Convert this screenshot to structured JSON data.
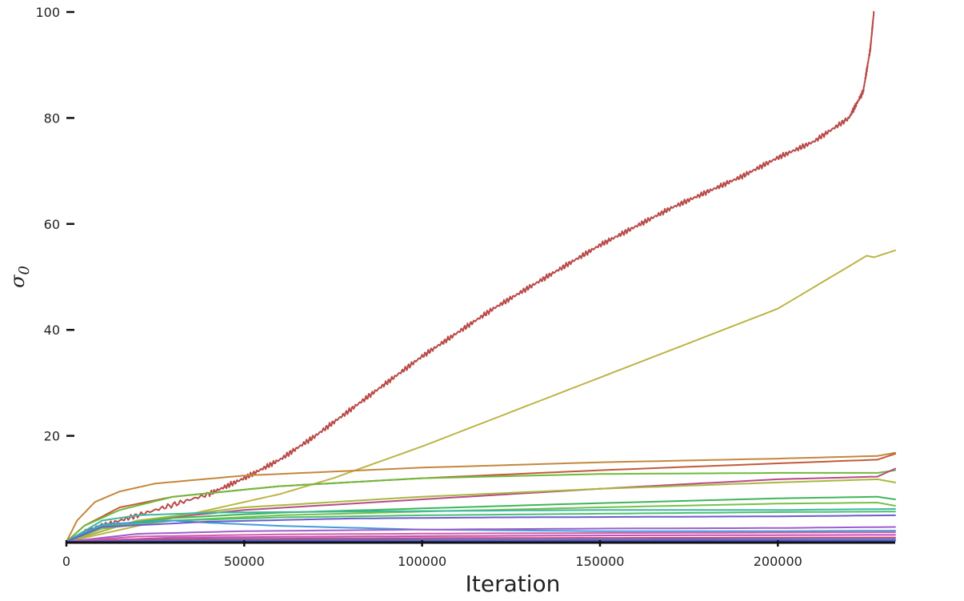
{
  "chart_data": {
    "type": "line",
    "title": "",
    "xlabel": "Iteration",
    "ylabel": "σ",
    "ylabel_subscript": "0",
    "xlim": [
      0,
      233000
    ],
    "ylim": [
      0,
      100
    ],
    "xticks": [
      0,
      50000,
      100000,
      150000,
      200000
    ],
    "xtick_labels": [
      "0",
      "50000",
      "100000",
      "150000",
      "200000"
    ],
    "yticks": [
      20,
      40,
      60,
      80,
      100
    ],
    "ytick_labels": [
      "20",
      "40",
      "60",
      "80",
      "100"
    ],
    "grid": false,
    "legend": "none",
    "series": [
      {
        "color": "#b94a48",
        "noise": 0.5,
        "x": [
          0,
          5000,
          20000,
          40000,
          50000,
          60000,
          70000,
          80000,
          90000,
          100000,
          110000,
          120000,
          130000,
          140000,
          150000,
          160000,
          170000,
          180000,
          190000,
          200000,
          210000,
          220000,
          224000,
          226000,
          227000
        ],
        "y": [
          0,
          2,
          5,
          9,
          12,
          15.5,
          20,
          25,
          30,
          35,
          39.5,
          44,
          48,
          52,
          56,
          59.5,
          63,
          66,
          69,
          72.5,
          75.5,
          80,
          85,
          93,
          100
        ]
      },
      {
        "color": "#bdb447",
        "x": [
          0,
          20000,
          40000,
          60000,
          75000,
          100000,
          150000,
          200000,
          225000,
          227000,
          233000
        ],
        "y": [
          0,
          3,
          6,
          9,
          12,
          18,
          31,
          44,
          54,
          53.7,
          55
        ]
      },
      {
        "color": "#c4873c",
        "x": [
          0,
          3000,
          8000,
          15000,
          25000,
          50000,
          100000,
          150000,
          200000,
          228000,
          233000
        ],
        "y": [
          0,
          4,
          7.5,
          9.5,
          11,
          12.5,
          14,
          15,
          15.7,
          16.2,
          16.8
        ]
      },
      {
        "color": "#c25a3a",
        "x": [
          0,
          5000,
          15000,
          30000,
          60000,
          100000,
          150000,
          200000,
          228000,
          233000
        ],
        "y": [
          0,
          3,
          6.5,
          8.5,
          10.5,
          12,
          13.5,
          14.8,
          15.5,
          16.6
        ]
      },
      {
        "color": "#6fba3c",
        "x": [
          0,
          5000,
          15000,
          30000,
          60000,
          100000,
          150000,
          200000,
          228000,
          233000
        ],
        "y": [
          0,
          3,
          6,
          8.5,
          10.5,
          12,
          12.8,
          13,
          13,
          13.5
        ]
      },
      {
        "color": "#b94a8a",
        "x": [
          0,
          20000,
          50000,
          100000,
          150000,
          200000,
          228000,
          233000
        ],
        "y": [
          0,
          4,
          6,
          8,
          10,
          11.8,
          12.3,
          13.8
        ]
      },
      {
        "color": "#a8b83c",
        "x": [
          0,
          20000,
          50000,
          100000,
          150000,
          200000,
          228000,
          233000
        ],
        "y": [
          0,
          4,
          6.5,
          8.5,
          10,
          11.2,
          11.8,
          11.2
        ]
      },
      {
        "color": "#3fb55a",
        "x": [
          0,
          10000,
          30000,
          60000,
          100000,
          150000,
          200000,
          228000,
          233000
        ],
        "y": [
          0,
          3,
          4.5,
          5.5,
          6.3,
          7.3,
          8.2,
          8.5,
          8.0
        ]
      },
      {
        "color": "#78c04a",
        "x": [
          0,
          10000,
          30000,
          60000,
          100000,
          150000,
          200000,
          228000,
          233000
        ],
        "y": [
          0,
          2.5,
          4,
          5,
          5.7,
          6.5,
          7.2,
          7.4,
          6.8
        ]
      },
      {
        "color": "#3bb8a0",
        "x": [
          0,
          10000,
          20000,
          40000,
          60000,
          100000,
          150000,
          200000,
          233000
        ],
        "y": [
          0,
          4,
          5,
          5.5,
          5.6,
          5.8,
          6.0,
          6.0,
          6.2
        ]
      },
      {
        "color": "#4cc06c",
        "x": [
          0,
          10000,
          30000,
          60000,
          100000,
          150000,
          200000,
          233000
        ],
        "y": [
          0,
          3,
          4,
          4.6,
          5.0,
          5.3,
          5.6,
          5.7
        ]
      },
      {
        "color": "#3e9ed6",
        "x": [
          0,
          10000,
          30000,
          40000,
          60000,
          100000,
          150000,
          200000,
          233000
        ],
        "y": [
          0,
          3.3,
          4.0,
          3.6,
          3.0,
          2.3,
          2.0,
          2.0,
          2.1
        ]
      },
      {
        "color": "#6d5bd0",
        "x": [
          0,
          10000,
          40000,
          80000,
          120000,
          160000,
          200000,
          233000
        ],
        "y": [
          0,
          2.8,
          3.8,
          4.4,
          4.6,
          4.7,
          4.8,
          5.0
        ]
      },
      {
        "color": "#9f5ccf",
        "x": [
          0,
          20000,
          50000,
          100000,
          150000,
          200000,
          233000
        ],
        "y": [
          0,
          1.5,
          2.0,
          2.3,
          2.5,
          2.6,
          2.8
        ]
      },
      {
        "color": "#d05fa3",
        "x": [
          0,
          20000,
          60000,
          120000,
          180000,
          233000
        ],
        "y": [
          0,
          1.0,
          1.4,
          1.6,
          1.7,
          1.8
        ]
      },
      {
        "color": "#c04ec0",
        "x": [
          0,
          30000,
          80000,
          150000,
          233000
        ],
        "y": [
          0,
          0.8,
          1.0,
          1.2,
          1.3
        ]
      },
      {
        "color": "#d04a6a",
        "x": [
          0,
          30000,
          100000,
          233000
        ],
        "y": [
          0,
          0.5,
          0.7,
          0.8
        ]
      },
      {
        "color": "#5a6fcf",
        "x": [
          0,
          30000,
          100000,
          233000
        ],
        "y": [
          0,
          0.3,
          0.4,
          0.5
        ]
      },
      {
        "color": "#4b55c8",
        "x": [
          0,
          50000,
          233000
        ],
        "y": [
          0,
          0.1,
          0.2
        ]
      }
    ]
  }
}
